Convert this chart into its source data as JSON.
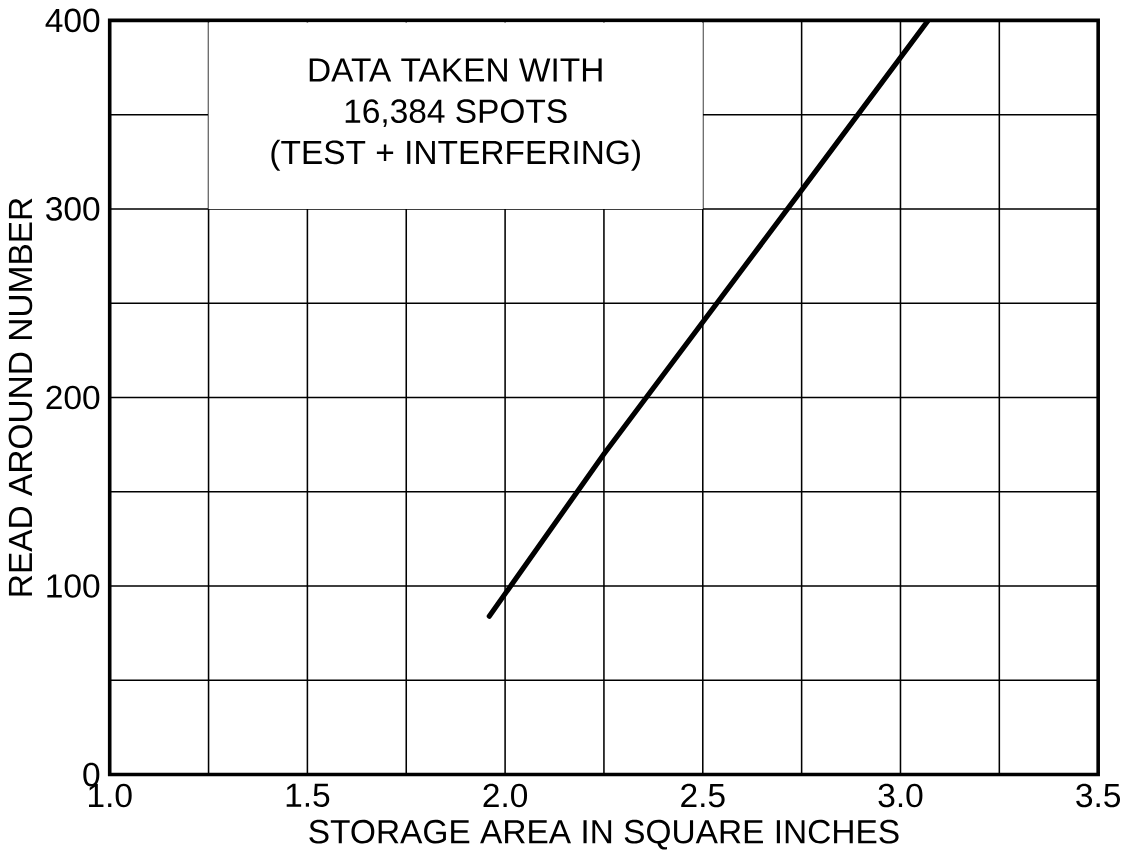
{
  "chart_data": {
    "type": "line",
    "xlabel": "STORAGE AREA IN SQUARE INCHES",
    "ylabel": "READ AROUND NUMBER",
    "annotations": [
      "DATA TAKEN WITH",
      "16,384 SPOTS",
      "(TEST + INTERFERING)"
    ],
    "x": [
      1.96,
      2.25,
      2.75,
      3.07
    ],
    "series": [
      {
        "color": "#000000",
        "values": [
          84,
          170,
          310,
          400
        ]
      }
    ],
    "xlim": [
      1.0,
      3.5
    ],
    "xticks": [
      {
        "value": 1.0,
        "label": "1.0"
      },
      {
        "value": 1.25,
        "label": null
      },
      1.5,
      {
        "value": 1.75,
        "label": null
      },
      {
        "value": 2.0,
        "label": "2.0"
      },
      {
        "value": 2.25,
        "label": null
      },
      2.5,
      {
        "value": 2.75,
        "label": null
      },
      {
        "value": 3.0,
        "label": "3.0"
      },
      {
        "value": 3.25,
        "label": null
      },
      3.5
    ],
    "ylim": [
      0,
      400
    ],
    "yticks": [
      0,
      {
        "value": 50,
        "label": null
      },
      100,
      {
        "value": 150,
        "label": null
      },
      200,
      {
        "value": 250,
        "label": null
      },
      300,
      {
        "value": 350,
        "label": null
      },
      400
    ],
    "grid": true,
    "legend": false,
    "marker": "none",
    "line_style": "solid"
  }
}
